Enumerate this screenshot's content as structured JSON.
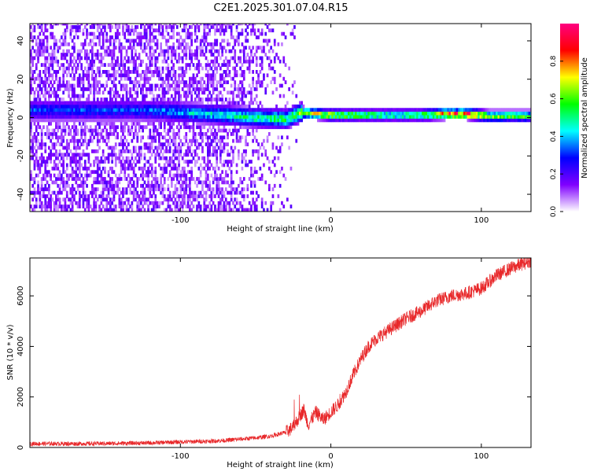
{
  "figure": {
    "title": "C2E1.2025.301.07.04.R15"
  },
  "chart_data": [
    {
      "type": "heatmap",
      "xlabel": "Height of straight line (km)",
      "ylabel": "Frequency (Hz)",
      "xlim": [
        -200,
        133
      ],
      "ylim": [
        -49,
        49
      ],
      "xticks": [
        -100,
        0,
        100
      ],
      "yticks": [
        -40,
        -20,
        0,
        20,
        40
      ],
      "colorbar": {
        "label": "Normalized spectral amplitude",
        "range": [
          0,
          1
        ],
        "ticks": [
          0.0,
          0.2,
          0.4,
          0.6,
          0.8
        ],
        "colormap": [
          "#ffffff",
          "#8000ff",
          "#0000ff",
          "#00ffff",
          "#00ff00",
          "#ffff00",
          "#ff0000",
          "#ff0080"
        ]
      },
      "ridge": [
        {
          "x": -130,
          "f": 3.0,
          "amp": 0.25
        },
        {
          "x": -110,
          "f": 2.5,
          "amp": 0.3
        },
        {
          "x": -90,
          "f": 1.5,
          "amp": 0.35
        },
        {
          "x": -70,
          "f": 0.5,
          "amp": 0.4
        },
        {
          "x": -50,
          "f": -1.0,
          "amp": 0.45
        },
        {
          "x": -30,
          "f": -1.5,
          "amp": 0.5
        },
        {
          "x": -20,
          "f": 2.0,
          "amp": 0.6
        },
        {
          "x": -10,
          "f": 1.0,
          "amp": 0.65
        },
        {
          "x": 0,
          "f": 0.5,
          "amp": 0.7
        },
        {
          "x": 20,
          "f": 0.5,
          "amp": 0.55
        },
        {
          "x": 40,
          "f": 0.5,
          "amp": 0.5
        },
        {
          "x": 60,
          "f": 0.5,
          "amp": 0.55
        },
        {
          "x": 75,
          "f": 1.0,
          "amp": 0.8
        },
        {
          "x": 90,
          "f": 1.0,
          "amp": 0.9
        },
        {
          "x": 105,
          "f": 0.0,
          "amp": 0.6
        },
        {
          "x": 133,
          "f": 0.0,
          "amp": 0.5
        }
      ]
    },
    {
      "type": "line",
      "xlabel": "Height of straight line (km)",
      "ylabel": "SNR (10 * v/v)",
      "xlim": [
        -200,
        133
      ],
      "ylim": [
        0,
        7500
      ],
      "xticks": [
        -100,
        0,
        100
      ],
      "yticks": [
        0,
        2000,
        4000,
        6000
      ],
      "line_color": "#e8282a",
      "series": [
        {
          "x": [
            -200,
            -160,
            -120,
            -100,
            -80,
            -70,
            -60,
            -50,
            -40,
            -30,
            -25,
            -20,
            -18,
            -15,
            -10,
            -5,
            0,
            5,
            10,
            15,
            20,
            25,
            30,
            40,
            50,
            60,
            70,
            80,
            90,
            100,
            110,
            120,
            133
          ],
          "values": [
            150,
            150,
            180,
            220,
            250,
            280,
            330,
            380,
            450,
            600,
            800,
            1300,
            1500,
            900,
            1400,
            1100,
            1400,
            1700,
            2200,
            2900,
            3500,
            4000,
            4300,
            4700,
            5100,
            5400,
            5800,
            6000,
            6100,
            6300,
            6800,
            7100,
            7400
          ]
        }
      ],
      "noise_amplitude": 170
    }
  ]
}
